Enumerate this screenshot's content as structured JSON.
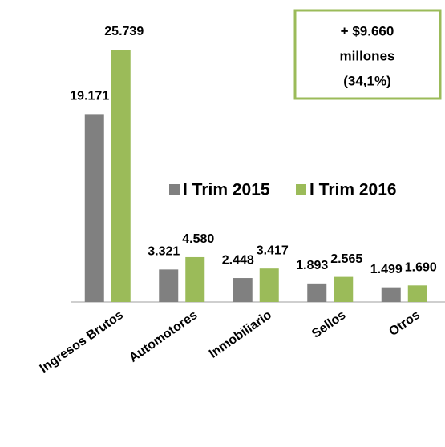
{
  "chart_data": {
    "type": "bar",
    "categories": [
      "Ingresos Brutos",
      "Automotores",
      "Inmobiliario",
      "Sellos",
      "Otros"
    ],
    "series": [
      {
        "name": "I Trim 2015",
        "color": "#808080",
        "values": [
          19171,
          3321,
          2448,
          1893,
          1499
        ],
        "value_labels": [
          "19.171",
          "3.321",
          "2.448",
          "1.893",
          "1.499"
        ]
      },
      {
        "name": "I Trim 2016",
        "color": "#9bbb59",
        "values": [
          25739,
          4580,
          3417,
          2565,
          1690
        ],
        "value_labels": [
          "25.739",
          "4.580",
          "3.417",
          "2.565",
          "1.690"
        ]
      }
    ],
    "annotation": [
      "+ $9.660",
      "millones",
      "(34,1%)"
    ],
    "annotation_color": "#9bbb59"
  }
}
